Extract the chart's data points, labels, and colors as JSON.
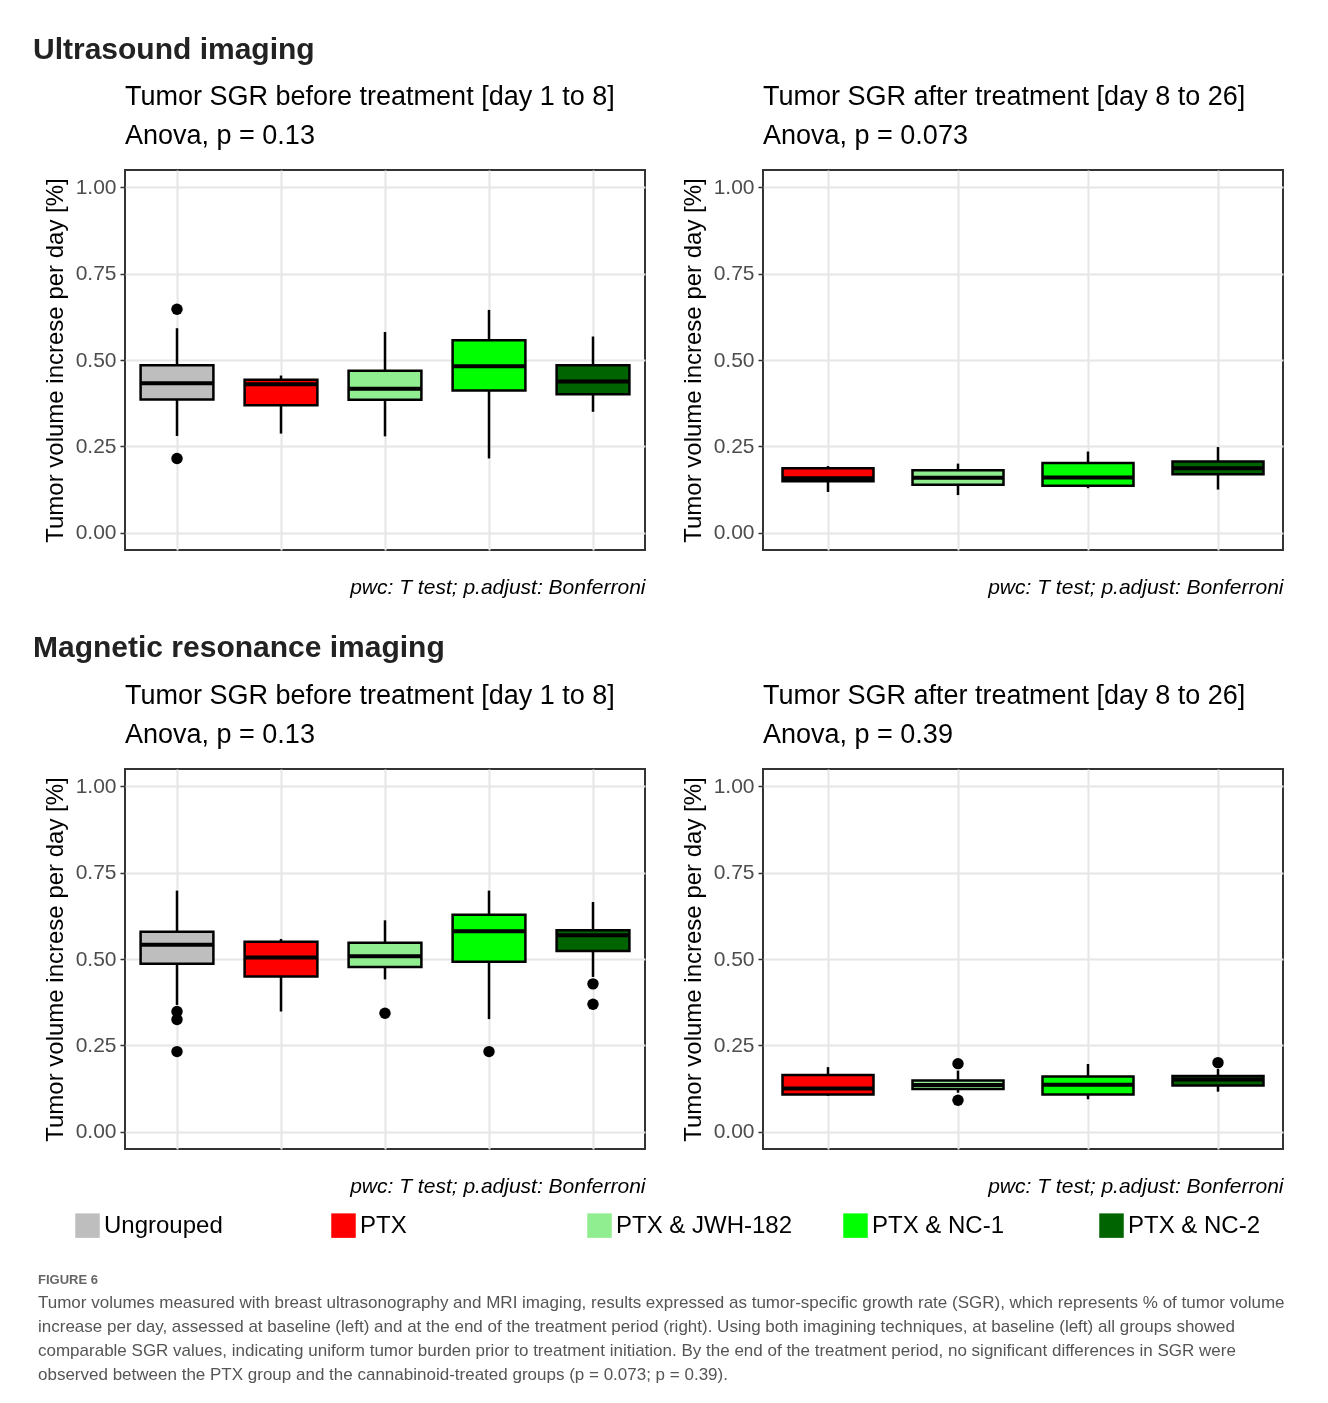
{
  "chart_data": [
    {
      "type": "other",
      "title": "Ultrasound imaging"
    },
    {
      "type": "box",
      "title": "Tumor SGR before treatment [day 1 to 8]",
      "subtitle": "Anova, p = 0.13",
      "ylabel": "Tumor volume increse per day [%]",
      "categories": [
        null,
        null,
        null,
        null,
        null
      ],
      "series": [
        {
          "color": "#bebebe",
          "boxes": [
            {
              "low": 0.28,
              "q1": 0.386,
              "median": 0.433,
              "q3": 0.485,
              "high": 0.592,
              "outliers": [
                0.647,
                0.215
              ]
            },
            null,
            null,
            null,
            null
          ]
        },
        {
          "color": "#ff0000",
          "boxes": [
            null,
            {
              "low": 0.287,
              "q1": 0.369,
              "median": 0.43,
              "q3": 0.443,
              "high": 0.455
            },
            null,
            null,
            null
          ]
        },
        {
          "color": "#90ee90",
          "boxes": [
            null,
            null,
            {
              "low": 0.279,
              "q1": 0.385,
              "median": 0.417,
              "q3": 0.469,
              "high": 0.581
            },
            null,
            null
          ]
        },
        {
          "color": "#00ff00",
          "boxes": [
            null,
            null,
            null,
            {
              "low": 0.215,
              "q1": 0.412,
              "median": 0.482,
              "q3": 0.557,
              "high": 0.645
            },
            null
          ]
        },
        {
          "color": "#006400",
          "boxes": [
            null,
            null,
            null,
            null,
            {
              "low": 0.35,
              "q1": 0.401,
              "median": 0.438,
              "q3": 0.485,
              "high": 0.568
            }
          ]
        }
      ],
      "ylim": [
        -0.05,
        1.05
      ],
      "yticks": [
        {
          "value": 0,
          "label": "0.00"
        },
        {
          "value": 0.25,
          "label": "0.25"
        },
        {
          "value": 0.5,
          "label": "0.50"
        },
        {
          "value": 0.75,
          "label": "0.75"
        },
        {
          "value": 1,
          "label": "1.00"
        }
      ],
      "grid": true,
      "tick_labels": "y",
      "annotations": [
        "pwc: T test; p.adjust: Bonferroni"
      ]
    },
    {
      "type": "box",
      "title": "Tumor SGR after treatment [day 8 to 26]",
      "subtitle": "Anova, p = 0.073",
      "ylabel": "Tumor volume increse per day [%]",
      "categories": [
        null,
        null,
        null,
        null
      ],
      "series": [
        {
          "color": "#ff0000",
          "boxes": [
            {
              "low": 0.118,
              "q1": 0.149,
              "median": 0.158,
              "q3": 0.187,
              "high": 0.193
            },
            null,
            null,
            null
          ]
        },
        {
          "color": "#90ee90",
          "boxes": [
            null,
            {
              "low": 0.109,
              "q1": 0.139,
              "median": 0.159,
              "q3": 0.181,
              "high": 0.2
            },
            null,
            null
          ]
        },
        {
          "color": "#00ff00",
          "boxes": [
            null,
            null,
            {
              "low": 0.129,
              "q1": 0.136,
              "median": 0.16,
              "q3": 0.202,
              "high": 0.235
            },
            null
          ]
        },
        {
          "color": "#006400",
          "boxes": [
            null,
            null,
            null,
            {
              "low": 0.125,
              "q1": 0.169,
              "median": 0.187,
              "q3": 0.206,
              "high": 0.248
            }
          ]
        }
      ],
      "ylim": [
        -0.05,
        1.05
      ],
      "yticks": [
        {
          "value": 0,
          "label": "0.00"
        },
        {
          "value": 0.25,
          "label": "0.25"
        },
        {
          "value": 0.5,
          "label": "0.50"
        },
        {
          "value": 0.75,
          "label": "0.75"
        },
        {
          "value": 1,
          "label": "1.00"
        }
      ],
      "grid": true,
      "tick_labels": "y",
      "annotations": [
        "pwc: T test; p.adjust: Bonferroni"
      ]
    },
    {
      "type": "other",
      "title": "Magnetic resonance imaging"
    },
    {
      "type": "box",
      "title": "Tumor SGR before treatment [day 1 to 8]",
      "subtitle": "Anova, p = 0.13",
      "ylabel": "Tumor volume increse per day [%]",
      "categories": [
        null,
        null,
        null,
        null,
        null
      ],
      "series": [
        {
          "name": "Ungrouped",
          "color": "#bebebe",
          "boxes": [
            {
              "low": 0.367,
              "q1": 0.486,
              "median": 0.541,
              "q3": 0.579,
              "high": 0.698,
              "outliers": [
                0.348,
                0.325,
                0.232
              ]
            },
            null,
            null,
            null,
            null
          ]
        },
        {
          "name": "PTX",
          "color": "#ff0000",
          "boxes": [
            null,
            {
              "low": 0.348,
              "q1": 0.449,
              "median": 0.504,
              "q3": 0.55,
              "high": 0.558
            },
            null,
            null,
            null
          ]
        },
        {
          "name": "PTX & JWH-182",
          "color": "#90ee90",
          "boxes": [
            null,
            null,
            {
              "low": 0.441,
              "q1": 0.477,
              "median": 0.508,
              "q3": 0.547,
              "high": 0.612,
              "outliers": [
                0.343
              ]
            },
            null,
            null
          ]
        },
        {
          "name": "PTX & NC-1",
          "color": "#00ff00",
          "boxes": [
            null,
            null,
            null,
            {
              "low": 0.326,
              "q1": 0.492,
              "median": 0.58,
              "q3": 0.628,
              "high": 0.698,
              "outliers": [
                0.232
              ]
            },
            null
          ]
        },
        {
          "name": "PTX & NC-2",
          "color": "#006400",
          "boxes": [
            null,
            null,
            null,
            null,
            {
              "low": 0.448,
              "q1": 0.523,
              "median": 0.569,
              "q3": 0.583,
              "high": 0.665,
              "outliers": [
                0.428,
                0.369
              ]
            }
          ]
        }
      ],
      "ylim": [
        -0.05,
        1.05
      ],
      "yticks": [
        {
          "value": 0,
          "label": "0.00"
        },
        {
          "value": 0.25,
          "label": "0.25"
        },
        {
          "value": 0.5,
          "label": "0.50"
        },
        {
          "value": 0.75,
          "label": "0.75"
        },
        {
          "value": 1,
          "label": "1.00"
        }
      ],
      "grid": true,
      "tick_labels": "y",
      "legend": "bottom",
      "annotations": [
        "pwc: T test; p.adjust: Bonferroni"
      ]
    },
    {
      "type": "box",
      "title": "Tumor SGR after treatment [day 8 to 26]",
      "subtitle": "Anova, p = 0.39",
      "ylabel": "Tumor volume increse per day [%]",
      "categories": [
        null,
        null,
        null,
        null
      ],
      "series": [
        {
          "color": "#ff0000",
          "boxes": [
            {
              "low": 0.104,
              "q1": 0.108,
              "median": 0.125,
              "q3": 0.164,
              "high": 0.187
            },
            null,
            null,
            null
          ]
        },
        {
          "color": "#90ee90",
          "boxes": [
            null,
            {
              "low": 0.113,
              "q1": 0.124,
              "median": 0.135,
              "q3": 0.148,
              "high": 0.177,
              "outliers": [
                0.197,
                0.091
              ]
            },
            null,
            null
          ]
        },
        {
          "color": "#00ff00",
          "boxes": [
            null,
            null,
            {
              "low": 0.094,
              "q1": 0.108,
              "median": 0.136,
              "q3": 0.16,
              "high": 0.196
            },
            null
          ]
        },
        {
          "color": "#006400",
          "boxes": [
            null,
            null,
            null,
            {
              "low": 0.116,
              "q1": 0.134,
              "median": 0.151,
              "q3": 0.161,
              "high": 0.182,
              "outliers": [
                0.2
              ]
            }
          ]
        }
      ],
      "ylim": [
        -0.05,
        1.05
      ],
      "yticks": [
        {
          "value": 0,
          "label": "0.00"
        },
        {
          "value": 0.25,
          "label": "0.25"
        },
        {
          "value": 0.5,
          "label": "0.50"
        },
        {
          "value": 0.75,
          "label": "0.75"
        },
        {
          "value": 1,
          "label": "1.00"
        }
      ],
      "grid": true,
      "tick_labels": "y",
      "annotations": [
        "pwc: T test; p.adjust: Bonferroni"
      ]
    },
    {
      "type": "other",
      "annotations": [
        "FIGURE 6",
        "Tumor volumes measured with breast ultrasonography and MRI imaging, results expressed as tumor-specific growth rate (SGR), which represents % of tumor volume increase per day, assessed at baseline (left) and at the end of the treatment period (right). Using both imagining techniques, at baseline (left) all groups showed comparable SGR values, indicating uniform tumor burden prior to treatment initiation. By the end of the treatment period, no significant differences in SGR were observed between the PTX group and the cannabinoid-treated groups (p = 0.073; p = 0.39)."
      ]
    }
  ]
}
